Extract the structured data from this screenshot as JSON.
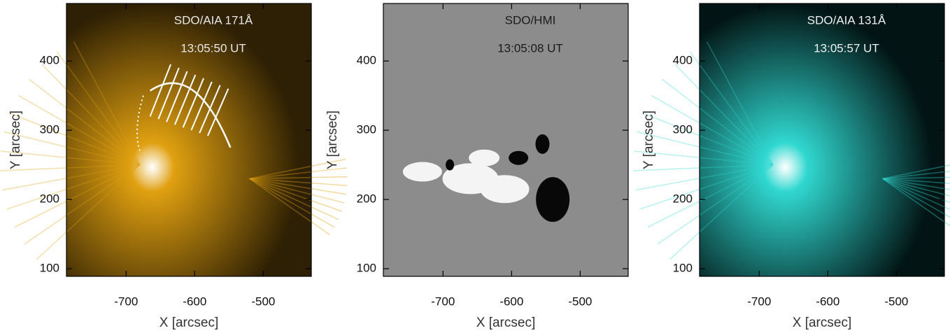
{
  "chart_data": [
    {
      "type": "image",
      "title": "SDO/AIA 171Å",
      "subtitle": "13:05:50 UT",
      "x_label": "X [arcsec]",
      "y_label": "Y [arcsec]",
      "color": "#e0a010",
      "xlim": [
        -787,
        -430
      ],
      "ylim": [
        89,
        483
      ],
      "xticks": [
        -700,
        -600,
        -500
      ],
      "yticks": [
        100,
        200,
        300,
        400
      ]
    },
    {
      "type": "image",
      "title": "SDO/HMI",
      "subtitle": "13:05:08 UT",
      "x_label": "X [arcsec]",
      "y_label": "Y [arcsec]",
      "color": "#8c8c8c",
      "xlim": [
        -787,
        -430
      ],
      "ylim": [
        89,
        483
      ],
      "xticks": [
        -700,
        -600,
        -500
      ],
      "yticks": [
        100,
        200,
        300,
        400
      ]
    },
    {
      "type": "image",
      "title": "SDO/AIA 131Å",
      "subtitle": "13:05:57 UT",
      "x_label": "X [arcsec]",
      "y_label": "Y [arcsec]",
      "color": "#30d8d0",
      "xlim": [
        -787,
        -430
      ],
      "ylim": [
        89,
        483
      ],
      "xticks": [
        -700,
        -600,
        -500
      ],
      "yticks": [
        100,
        200,
        300,
        400
      ]
    }
  ]
}
